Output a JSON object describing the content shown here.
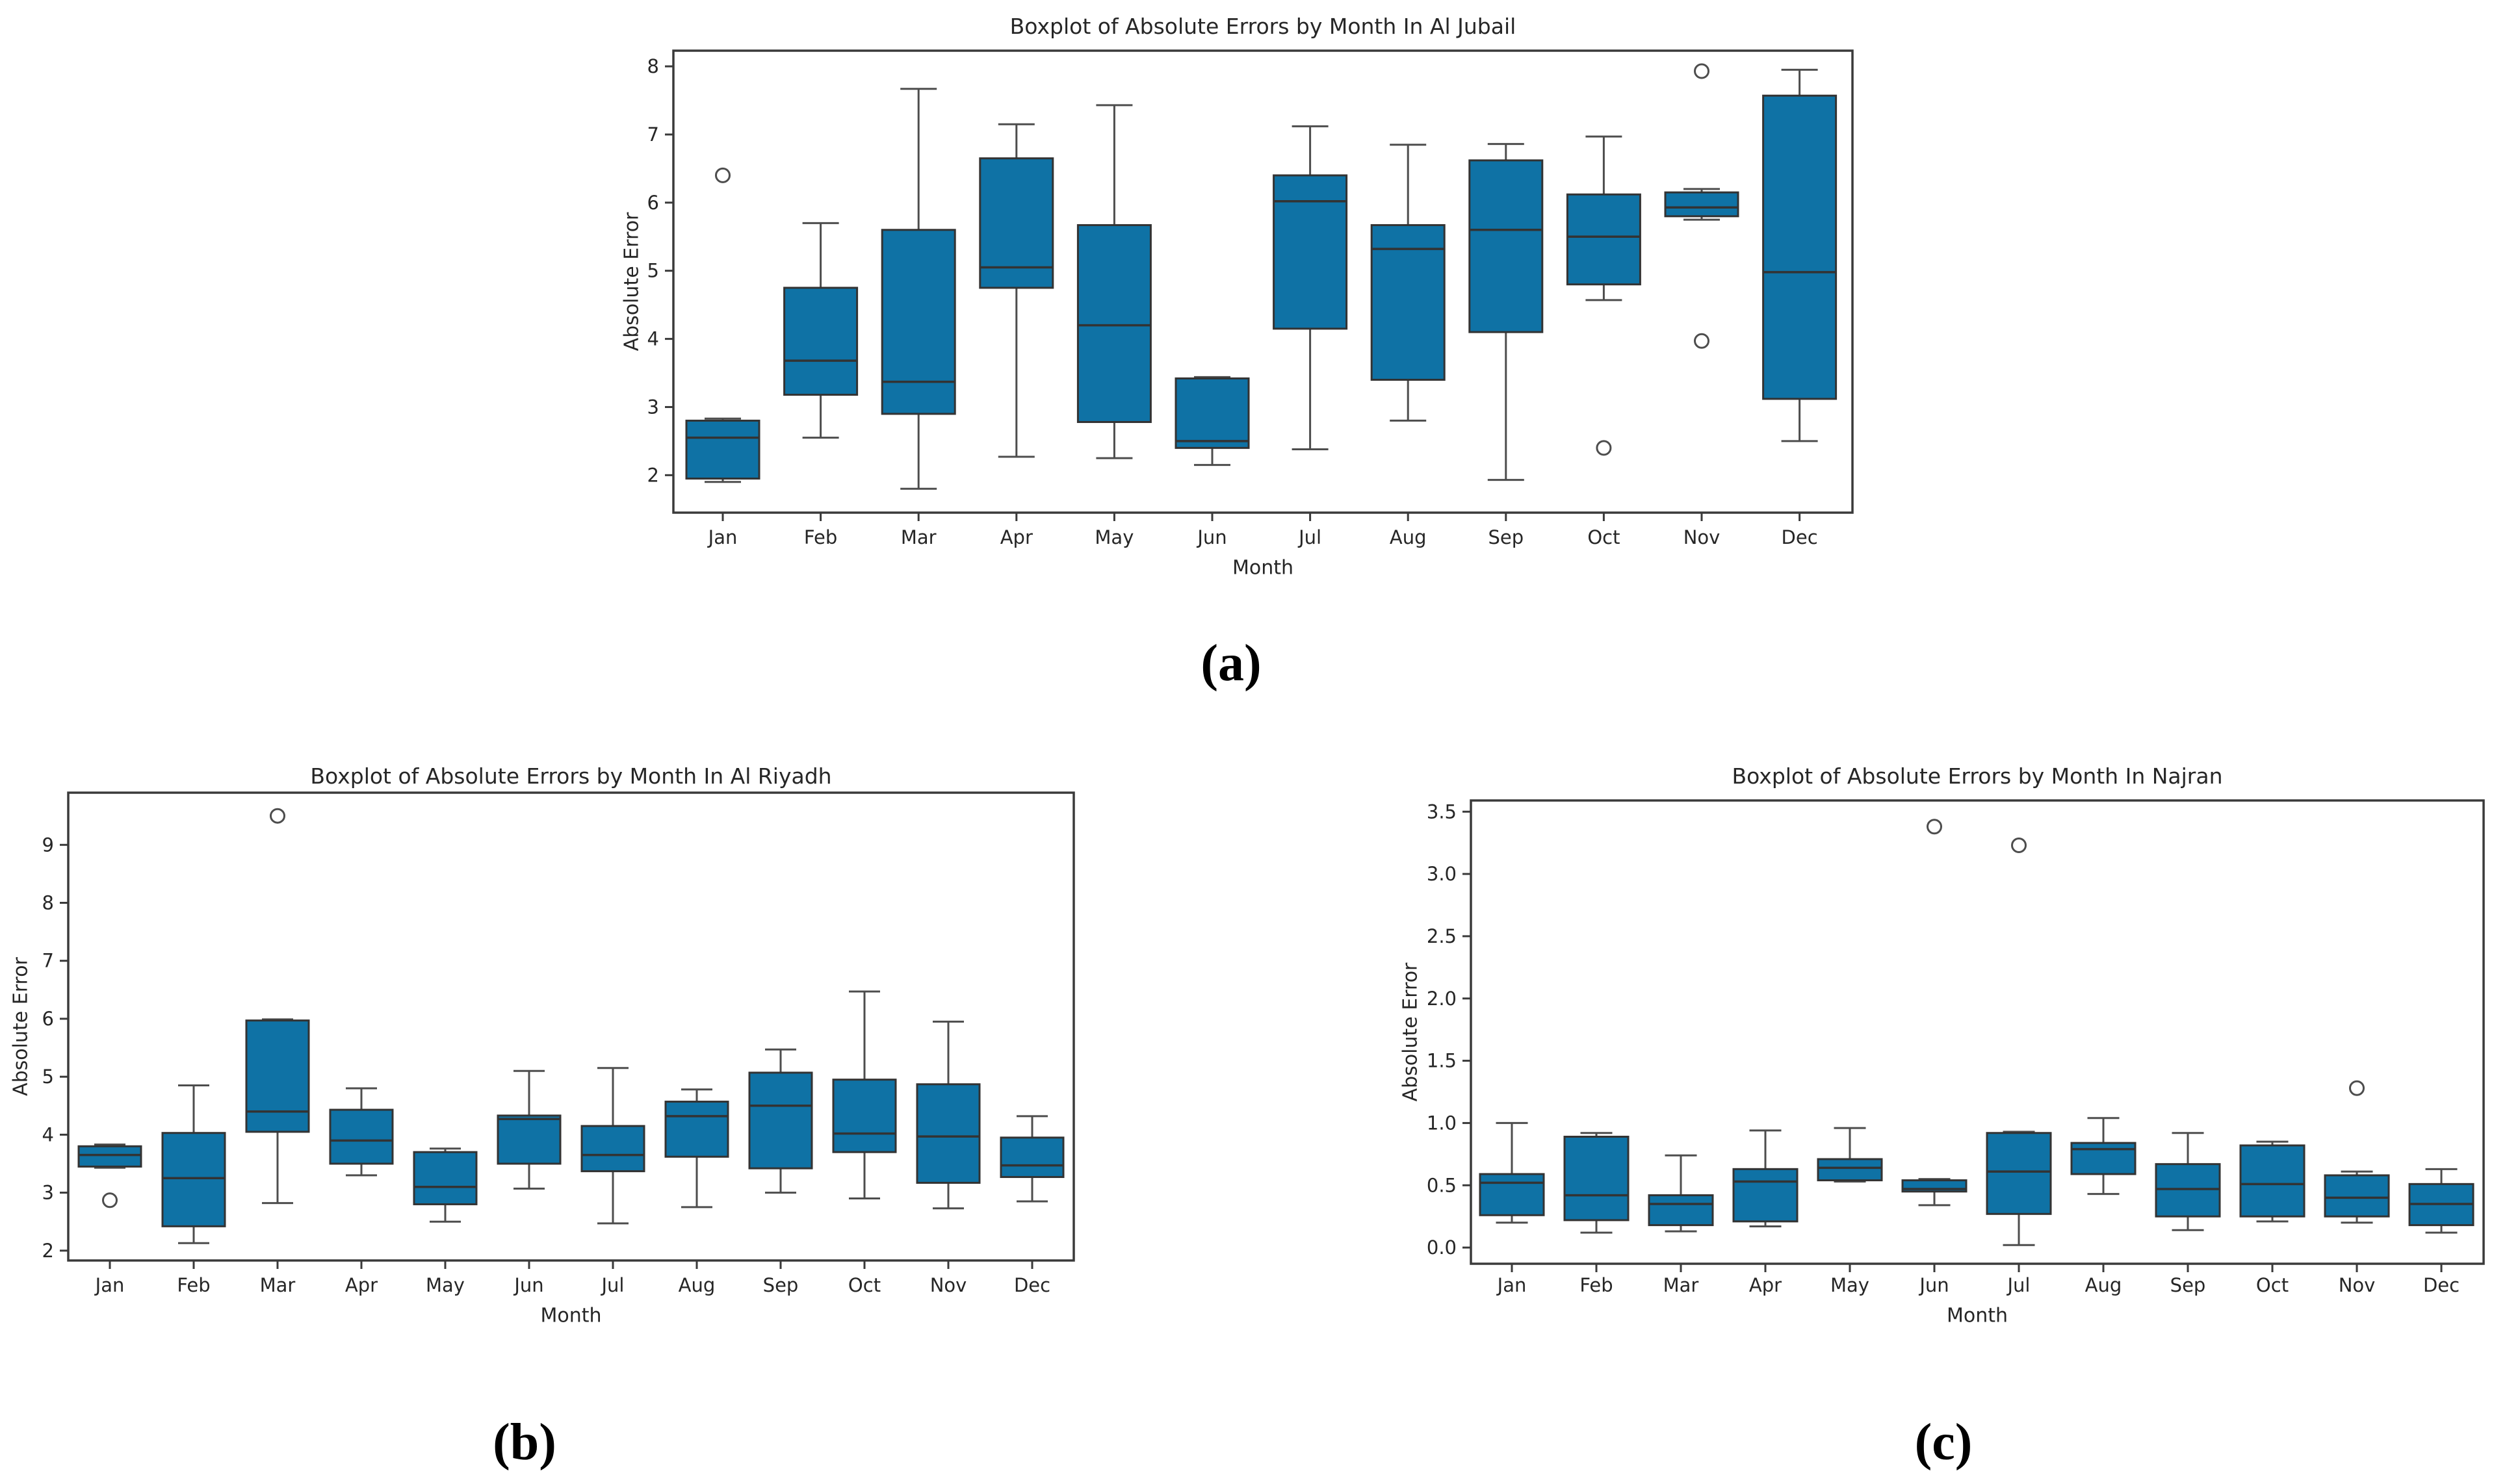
{
  "colors": {
    "box_fill": "#0f72a5",
    "box_edge": "#333333",
    "whisker": "#4d4d4d",
    "axis": "#3a3a3a",
    "text": "#262626",
    "background": "#ffffff"
  },
  "figures": {
    "a": {
      "caption": "(a)"
    },
    "b": {
      "caption": "(b)"
    },
    "c": {
      "caption": "(c)"
    }
  },
  "chart_data": [
    {
      "id": "a",
      "type": "boxplot",
      "title": "Boxplot of Absolute Errors by Month In Al Jubail",
      "xlabel": "Month",
      "ylabel": "Absolute Error",
      "categories": [
        "Jan",
        "Feb",
        "Mar",
        "Apr",
        "May",
        "Jun",
        "Jul",
        "Aug",
        "Sep",
        "Oct",
        "Nov",
        "Dec"
      ],
      "ylim": [
        1.45,
        8.23
      ],
      "yticks": [
        2,
        3,
        4,
        5,
        6,
        7,
        8
      ],
      "ytick_labels": [
        "2",
        "3",
        "4",
        "5",
        "6",
        "7",
        "8"
      ],
      "grid": false,
      "boxes": [
        {
          "label": "Jan",
          "whislo": 1.9,
          "q1": 1.95,
          "med": 2.55,
          "q3": 2.8,
          "whishi": 2.83,
          "fliers": [
            6.4
          ]
        },
        {
          "label": "Feb",
          "whislo": 2.55,
          "q1": 3.18,
          "med": 3.68,
          "q3": 4.75,
          "whishi": 5.7,
          "fliers": []
        },
        {
          "label": "Mar",
          "whislo": 1.8,
          "q1": 2.9,
          "med": 3.37,
          "q3": 5.6,
          "whishi": 7.67,
          "fliers": []
        },
        {
          "label": "Apr",
          "whislo": 2.27,
          "q1": 4.75,
          "med": 5.05,
          "q3": 6.65,
          "whishi": 7.15,
          "fliers": []
        },
        {
          "label": "May",
          "whislo": 2.25,
          "q1": 2.78,
          "med": 4.2,
          "q3": 5.67,
          "whishi": 7.43,
          "fliers": []
        },
        {
          "label": "Jun",
          "whislo": 2.15,
          "q1": 2.4,
          "med": 2.5,
          "q3": 3.42,
          "whishi": 3.44,
          "fliers": []
        },
        {
          "label": "Jul",
          "whislo": 2.38,
          "q1": 4.15,
          "med": 6.02,
          "q3": 6.4,
          "whishi": 7.12,
          "fliers": []
        },
        {
          "label": "Aug",
          "whislo": 2.8,
          "q1": 3.4,
          "med": 5.32,
          "q3": 5.67,
          "whishi": 6.85,
          "fliers": []
        },
        {
          "label": "Sep",
          "whislo": 1.93,
          "q1": 4.1,
          "med": 5.6,
          "q3": 6.62,
          "whishi": 6.86,
          "fliers": []
        },
        {
          "label": "Oct",
          "whislo": 4.57,
          "q1": 4.8,
          "med": 5.5,
          "q3": 6.12,
          "whishi": 6.97,
          "fliers": [
            2.4
          ]
        },
        {
          "label": "Nov",
          "whislo": 5.75,
          "q1": 5.8,
          "med": 5.93,
          "q3": 6.15,
          "whishi": 6.2,
          "fliers": [
            7.93,
            3.97
          ]
        },
        {
          "label": "Dec",
          "whislo": 2.5,
          "q1": 3.12,
          "med": 4.98,
          "q3": 7.57,
          "whishi": 7.95,
          "fliers": []
        }
      ]
    },
    {
      "id": "b",
      "type": "boxplot",
      "title": "Boxplot of Absolute Errors by Month In Al Riyadh",
      "xlabel": "Month",
      "ylabel": "Absolute Error",
      "categories": [
        "Jan",
        "Feb",
        "Mar",
        "Apr",
        "May",
        "Jun",
        "Jul",
        "Aug",
        "Sep",
        "Oct",
        "Nov",
        "Dec"
      ],
      "ylim": [
        1.83,
        9.9
      ],
      "yticks": [
        2,
        3,
        4,
        5,
        6,
        7,
        8,
        9
      ],
      "ytick_labels": [
        "2",
        "3",
        "4",
        "5",
        "6",
        "7",
        "8",
        "9"
      ],
      "grid": false,
      "boxes": [
        {
          "label": "Jan",
          "whislo": 3.43,
          "q1": 3.45,
          "med": 3.65,
          "q3": 3.8,
          "whishi": 3.83,
          "fliers": [
            2.87
          ]
        },
        {
          "label": "Feb",
          "whislo": 2.13,
          "q1": 2.42,
          "med": 3.25,
          "q3": 4.03,
          "whishi": 4.85,
          "fliers": []
        },
        {
          "label": "Mar",
          "whislo": 2.82,
          "q1": 4.05,
          "med": 4.4,
          "q3": 5.97,
          "whishi": 5.99,
          "fliers": [
            9.5
          ]
        },
        {
          "label": "Apr",
          "whislo": 3.3,
          "q1": 3.5,
          "med": 3.9,
          "q3": 4.43,
          "whishi": 4.8,
          "fliers": []
        },
        {
          "label": "May",
          "whislo": 2.5,
          "q1": 2.8,
          "med": 3.1,
          "q3": 3.7,
          "whishi": 3.76,
          "fliers": []
        },
        {
          "label": "Jun",
          "whislo": 3.07,
          "q1": 3.5,
          "med": 4.27,
          "q3": 4.33,
          "whishi": 5.1,
          "fliers": []
        },
        {
          "label": "Jul",
          "whislo": 2.47,
          "q1": 3.37,
          "med": 3.65,
          "q3": 4.15,
          "whishi": 5.15,
          "fliers": []
        },
        {
          "label": "Aug",
          "whislo": 2.75,
          "q1": 3.62,
          "med": 4.32,
          "q3": 4.57,
          "whishi": 4.78,
          "fliers": []
        },
        {
          "label": "Sep",
          "whislo": 3.0,
          "q1": 3.42,
          "med": 4.5,
          "q3": 5.07,
          "whishi": 5.47,
          "fliers": []
        },
        {
          "label": "Oct",
          "whislo": 2.9,
          "q1": 3.7,
          "med": 4.02,
          "q3": 4.95,
          "whishi": 6.47,
          "fliers": []
        },
        {
          "label": "Nov",
          "whislo": 2.73,
          "q1": 3.17,
          "med": 3.97,
          "q3": 4.87,
          "whishi": 5.95,
          "fliers": []
        },
        {
          "label": "Dec",
          "whislo": 2.85,
          "q1": 3.27,
          "med": 3.47,
          "q3": 3.95,
          "whishi": 4.32,
          "fliers": []
        }
      ]
    },
    {
      "id": "c",
      "type": "boxplot",
      "title": "Boxplot of Absolute Errors by Month In Najran",
      "xlabel": "Month",
      "ylabel": "Absolute Error",
      "categories": [
        "Jan",
        "Feb",
        "Mar",
        "Apr",
        "May",
        "Jun",
        "Jul",
        "Aug",
        "Sep",
        "Oct",
        "Nov",
        "Dec"
      ],
      "ylim": [
        -0.13,
        3.59
      ],
      "yticks": [
        0.0,
        0.5,
        1.0,
        1.5,
        2.0,
        2.5,
        3.0,
        3.5
      ],
      "ytick_labels": [
        "0.0",
        "0.5",
        "1.0",
        "1.5",
        "2.0",
        "2.5",
        "3.0",
        "3.5"
      ],
      "grid": false,
      "boxes": [
        {
          "label": "Jan",
          "whislo": 0.2,
          "q1": 0.26,
          "med": 0.52,
          "q3": 0.59,
          "whishi": 1.0,
          "fliers": []
        },
        {
          "label": "Feb",
          "whislo": 0.12,
          "q1": 0.22,
          "med": 0.42,
          "q3": 0.89,
          "whishi": 0.92,
          "fliers": []
        },
        {
          "label": "Mar",
          "whislo": 0.13,
          "q1": 0.18,
          "med": 0.35,
          "q3": 0.42,
          "whishi": 0.74,
          "fliers": []
        },
        {
          "label": "Apr",
          "whislo": 0.17,
          "q1": 0.21,
          "med": 0.53,
          "q3": 0.63,
          "whishi": 0.94,
          "fliers": []
        },
        {
          "label": "May",
          "whislo": 0.53,
          "q1": 0.54,
          "med": 0.64,
          "q3": 0.71,
          "whishi": 0.96,
          "fliers": []
        },
        {
          "label": "Jun",
          "whislo": 0.34,
          "q1": 0.45,
          "med": 0.47,
          "q3": 0.54,
          "whishi": 0.55,
          "fliers": [
            3.38
          ]
        },
        {
          "label": "Jul",
          "whislo": 0.02,
          "q1": 0.27,
          "med": 0.61,
          "q3": 0.92,
          "whishi": 0.93,
          "fliers": [
            3.23
          ]
        },
        {
          "label": "Aug",
          "whislo": 0.43,
          "q1": 0.59,
          "med": 0.79,
          "q3": 0.84,
          "whishi": 1.04,
          "fliers": []
        },
        {
          "label": "Sep",
          "whislo": 0.14,
          "q1": 0.25,
          "med": 0.47,
          "q3": 0.67,
          "whishi": 0.92,
          "fliers": []
        },
        {
          "label": "Oct",
          "whislo": 0.21,
          "q1": 0.25,
          "med": 0.51,
          "q3": 0.82,
          "whishi": 0.85,
          "fliers": []
        },
        {
          "label": "Nov",
          "whislo": 0.2,
          "q1": 0.25,
          "med": 0.4,
          "q3": 0.58,
          "whishi": 0.61,
          "fliers": [
            1.28
          ]
        },
        {
          "label": "Dec",
          "whislo": 0.12,
          "q1": 0.18,
          "med": 0.35,
          "q3": 0.51,
          "whishi": 0.63,
          "fliers": []
        }
      ]
    }
  ]
}
